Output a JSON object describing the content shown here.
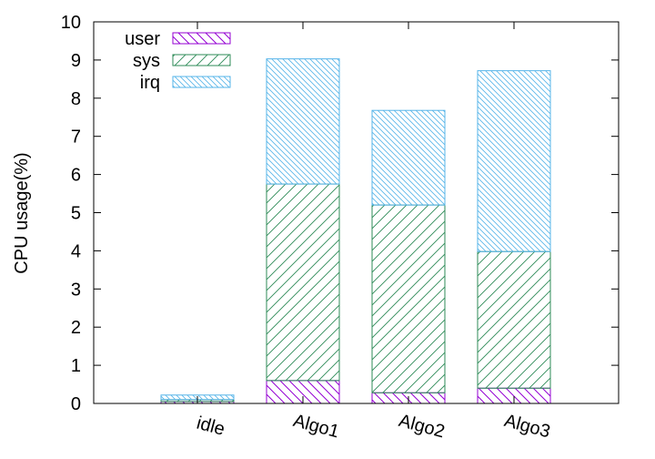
{
  "chart_data": {
    "type": "bar",
    "stacked": true,
    "categories": [
      "idle",
      "Algo1",
      "Algo2",
      "Algo3"
    ],
    "series": [
      {
        "name": "user",
        "values": [
          0.05,
          0.6,
          0.28,
          0.4
        ],
        "color": "#9400d3",
        "pattern": "hatch-back"
      },
      {
        "name": "sys",
        "values": [
          0.05,
          5.15,
          4.92,
          3.58
        ],
        "color": "#2e8b57",
        "pattern": "hatch-forward"
      },
      {
        "name": "irq",
        "values": [
          0.12,
          3.28,
          2.48,
          4.74
        ],
        "color": "#56b4e9",
        "pattern": "hatch-back-dense"
      }
    ],
    "title": "",
    "xlabel": "",
    "ylabel": "CPU usage(%)",
    "ylim": [
      0,
      10
    ],
    "yticks": [
      0,
      1,
      2,
      3,
      4,
      5,
      6,
      7,
      8,
      9,
      10
    ],
    "legend_position": "top-left",
    "grid": false
  }
}
